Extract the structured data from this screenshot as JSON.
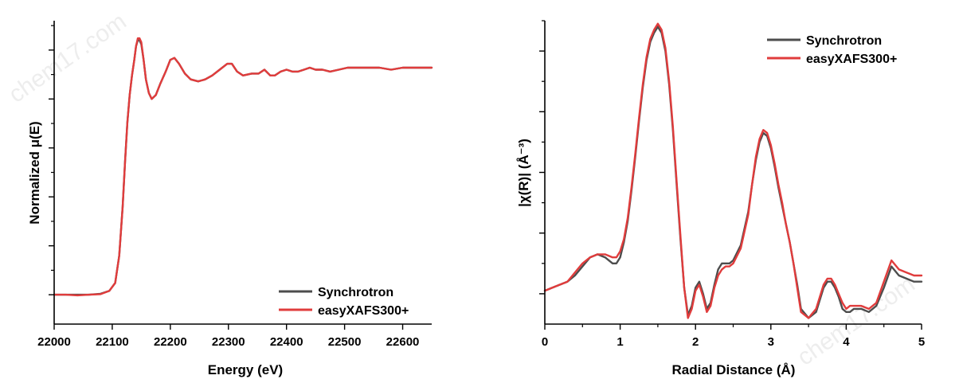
{
  "watermark": "chem17.com",
  "colors": {
    "synchrotron": "#4d4d4d",
    "easyxafs": "#e03c3c",
    "axis": "#000000"
  },
  "chart_data": [
    {
      "id": "xanes",
      "type": "line",
      "xlabel": "Energy (eV)",
      "ylabel": "Normalized μ(E)",
      "xlim": [
        22000,
        22650
      ],
      "ylim": [
        -0.15,
        1.4
      ],
      "xticks": [
        22000,
        22100,
        22200,
        22300,
        22400,
        22500,
        22600
      ],
      "xtick_labels": [
        "22000",
        "22100",
        "22200",
        "22300",
        "22400",
        "22500",
        "22600"
      ],
      "yticks_major": [
        0,
        0.25,
        0.5,
        0.75,
        1.0,
        1.25
      ],
      "yticks_minor": [
        0.125,
        0.375,
        0.625,
        0.875,
        1.125,
        1.375
      ],
      "show_ytick_labels": false,
      "legend_position": "bottom-right",
      "legend": [
        "Synchrotron",
        "easyXAFS300+"
      ],
      "series": [
        {
          "name": "Synchrotron",
          "color_key": "synchrotron",
          "x": [
            22000,
            22020,
            22040,
            22060,
            22080,
            22095,
            22105,
            22112,
            22118,
            22122,
            22126,
            22130,
            22134,
            22138,
            22141,
            22144,
            22147,
            22150,
            22154,
            22158,
            22163,
            22168,
            22175,
            22183,
            22192,
            22200,
            22207,
            22215,
            22225,
            22235,
            22248,
            22260,
            22272,
            22285,
            22298,
            22306,
            22315,
            22325,
            22340,
            22352,
            22362,
            22372,
            22380,
            22390,
            22400,
            22410,
            22420,
            22430,
            22440,
            22450,
            22462,
            22475,
            22490,
            22505,
            22520,
            22540,
            22560,
            22580,
            22600,
            22620,
            22650
          ],
          "y": [
            0.0,
            0.0,
            0.0,
            0.0,
            0.005,
            0.02,
            0.06,
            0.2,
            0.45,
            0.68,
            0.88,
            1.02,
            1.12,
            1.2,
            1.27,
            1.3,
            1.3,
            1.28,
            1.2,
            1.1,
            1.03,
            1.0,
            1.02,
            1.08,
            1.14,
            1.2,
            1.21,
            1.18,
            1.13,
            1.1,
            1.09,
            1.1,
            1.12,
            1.15,
            1.18,
            1.18,
            1.14,
            1.12,
            1.13,
            1.13,
            1.15,
            1.12,
            1.12,
            1.14,
            1.15,
            1.14,
            1.14,
            1.15,
            1.16,
            1.15,
            1.15,
            1.14,
            1.15,
            1.16,
            1.16,
            1.16,
            1.16,
            1.15,
            1.16,
            1.16,
            1.16
          ]
        },
        {
          "name": "easyXAFS300+",
          "color_key": "easyxafs",
          "x": [
            22000,
            22020,
            22040,
            22060,
            22080,
            22095,
            22105,
            22112,
            22118,
            22122,
            22126,
            22130,
            22134,
            22138,
            22141,
            22144,
            22147,
            22150,
            22154,
            22158,
            22163,
            22168,
            22175,
            22183,
            22192,
            22200,
            22207,
            22215,
            22225,
            22235,
            22248,
            22260,
            22272,
            22285,
            22298,
            22306,
            22315,
            22325,
            22340,
            22352,
            22362,
            22372,
            22380,
            22390,
            22400,
            22410,
            22420,
            22430,
            22440,
            22450,
            22462,
            22475,
            22490,
            22505,
            22520,
            22540,
            22560,
            22580,
            22600,
            22620,
            22650
          ],
          "y": [
            0.0,
            0.0,
            -0.003,
            0.0,
            0.003,
            0.02,
            0.06,
            0.2,
            0.45,
            0.68,
            0.88,
            1.02,
            1.12,
            1.2,
            1.27,
            1.31,
            1.31,
            1.29,
            1.2,
            1.1,
            1.03,
            1.0,
            1.02,
            1.08,
            1.14,
            1.2,
            1.21,
            1.18,
            1.13,
            1.1,
            1.09,
            1.1,
            1.12,
            1.15,
            1.18,
            1.18,
            1.14,
            1.12,
            1.13,
            1.13,
            1.15,
            1.12,
            1.12,
            1.14,
            1.15,
            1.14,
            1.14,
            1.15,
            1.16,
            1.15,
            1.15,
            1.14,
            1.15,
            1.16,
            1.16,
            1.16,
            1.16,
            1.15,
            1.16,
            1.16,
            1.16
          ]
        }
      ]
    },
    {
      "id": "ft-exafs",
      "type": "line",
      "xlabel": "Radial Distance (Å)",
      "ylabel": "|χ(R)| (Å⁻³)",
      "xlim": [
        0,
        5
      ],
      "ylim": [
        0,
        1.0
      ],
      "xticks": [
        0,
        1,
        2,
        3,
        4,
        5
      ],
      "xtick_labels": [
        "0",
        "1",
        "2",
        "3",
        "4",
        "5"
      ],
      "xticks_minor": [
        0.5,
        1.5,
        2.5,
        3.5,
        4.5
      ],
      "yticks_major": [
        0.1,
        0.3,
        0.5,
        0.7,
        0.9
      ],
      "yticks_minor": [
        0.2,
        0.4,
        0.6,
        0.8,
        1.0
      ],
      "show_ytick_labels": false,
      "legend_position": "top-right",
      "legend": [
        "Synchrotron",
        "easyXAFS300+"
      ],
      "series": [
        {
          "name": "Synchrotron",
          "color_key": "synchrotron",
          "x": [
            0,
            0.1,
            0.2,
            0.3,
            0.4,
            0.5,
            0.6,
            0.7,
            0.8,
            0.9,
            0.95,
            1.0,
            1.05,
            1.1,
            1.15,
            1.2,
            1.25,
            1.3,
            1.35,
            1.4,
            1.45,
            1.5,
            1.55,
            1.6,
            1.65,
            1.7,
            1.75,
            1.8,
            1.85,
            1.9,
            1.95,
            2.0,
            2.05,
            2.1,
            2.15,
            2.2,
            2.25,
            2.3,
            2.35,
            2.4,
            2.45,
            2.5,
            2.6,
            2.7,
            2.75,
            2.8,
            2.85,
            2.9,
            2.95,
            3.0,
            3.05,
            3.1,
            3.15,
            3.2,
            3.25,
            3.3,
            3.35,
            3.4,
            3.5,
            3.6,
            3.65,
            3.7,
            3.75,
            3.8,
            3.85,
            3.9,
            3.95,
            4.0,
            4.05,
            4.1,
            4.2,
            4.3,
            4.4,
            4.5,
            4.6,
            4.7,
            4.8,
            4.9,
            5.0
          ],
          "y": [
            0.11,
            0.12,
            0.13,
            0.14,
            0.16,
            0.19,
            0.22,
            0.23,
            0.22,
            0.2,
            0.2,
            0.22,
            0.27,
            0.34,
            0.44,
            0.55,
            0.67,
            0.78,
            0.87,
            0.93,
            0.96,
            0.98,
            0.96,
            0.9,
            0.79,
            0.64,
            0.46,
            0.28,
            0.12,
            0.03,
            0.06,
            0.12,
            0.14,
            0.1,
            0.05,
            0.07,
            0.13,
            0.18,
            0.2,
            0.2,
            0.2,
            0.21,
            0.26,
            0.37,
            0.46,
            0.54,
            0.6,
            0.63,
            0.62,
            0.58,
            0.52,
            0.45,
            0.39,
            0.33,
            0.27,
            0.2,
            0.13,
            0.05,
            0.02,
            0.04,
            0.08,
            0.12,
            0.14,
            0.14,
            0.12,
            0.09,
            0.05,
            0.04,
            0.04,
            0.05,
            0.05,
            0.04,
            0.06,
            0.12,
            0.19,
            0.16,
            0.15,
            0.14,
            0.14
          ]
        },
        {
          "name": "easyXAFS300+",
          "color_key": "easyxafs",
          "x": [
            0,
            0.1,
            0.2,
            0.3,
            0.4,
            0.5,
            0.6,
            0.7,
            0.8,
            0.9,
            0.95,
            1.0,
            1.05,
            1.1,
            1.15,
            1.2,
            1.25,
            1.3,
            1.35,
            1.4,
            1.45,
            1.5,
            1.55,
            1.6,
            1.65,
            1.7,
            1.75,
            1.8,
            1.85,
            1.9,
            1.95,
            2.0,
            2.05,
            2.1,
            2.15,
            2.2,
            2.25,
            2.3,
            2.35,
            2.4,
            2.45,
            2.5,
            2.6,
            2.7,
            2.75,
            2.8,
            2.85,
            2.9,
            2.95,
            3.0,
            3.05,
            3.1,
            3.15,
            3.2,
            3.25,
            3.3,
            3.35,
            3.4,
            3.5,
            3.6,
            3.65,
            3.7,
            3.75,
            3.8,
            3.85,
            3.9,
            3.95,
            4.0,
            4.05,
            4.1,
            4.2,
            4.3,
            4.4,
            4.5,
            4.6,
            4.7,
            4.8,
            4.9,
            5.0
          ],
          "y": [
            0.11,
            0.12,
            0.13,
            0.14,
            0.17,
            0.2,
            0.22,
            0.23,
            0.23,
            0.22,
            0.22,
            0.24,
            0.28,
            0.35,
            0.45,
            0.56,
            0.68,
            0.79,
            0.88,
            0.94,
            0.97,
            0.99,
            0.97,
            0.91,
            0.8,
            0.65,
            0.47,
            0.29,
            0.12,
            0.02,
            0.05,
            0.11,
            0.13,
            0.09,
            0.04,
            0.06,
            0.12,
            0.16,
            0.18,
            0.19,
            0.19,
            0.2,
            0.25,
            0.36,
            0.46,
            0.55,
            0.61,
            0.64,
            0.63,
            0.59,
            0.53,
            0.46,
            0.4,
            0.33,
            0.27,
            0.2,
            0.12,
            0.04,
            0.02,
            0.05,
            0.09,
            0.13,
            0.15,
            0.15,
            0.13,
            0.1,
            0.07,
            0.05,
            0.06,
            0.06,
            0.06,
            0.05,
            0.07,
            0.14,
            0.21,
            0.18,
            0.17,
            0.16,
            0.16
          ]
        }
      ]
    }
  ]
}
